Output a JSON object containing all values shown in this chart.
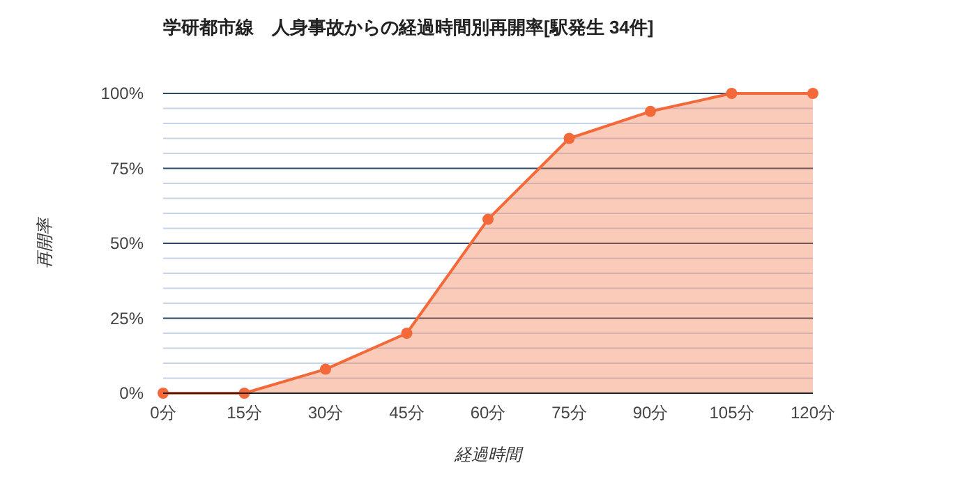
{
  "chart_data": {
    "type": "area",
    "title": "学研都市線　人身事故からの経過時間別再開率[駅発生 34件]",
    "categories": [
      "0分",
      "15分",
      "30分",
      "45分",
      "60分",
      "75分",
      "90分",
      "105分",
      "120分"
    ],
    "series": [
      {
        "color": "#f4693a",
        "values": [
          0,
          0,
          8,
          20,
          58,
          85,
          94,
          100,
          100
        ]
      }
    ],
    "xlabel": "経過時間",
    "ylabel": "再開率",
    "ylim": [
      0,
      100
    ],
    "yticks": [
      {
        "value": 0,
        "label": "0%"
      },
      {
        "value": 5,
        "label": null
      },
      {
        "value": 10,
        "label": null
      },
      {
        "value": 15,
        "label": null
      },
      {
        "value": 20,
        "label": null
      },
      {
        "value": 25,
        "label": "25%"
      },
      {
        "value": 30,
        "label": null
      },
      {
        "value": 35,
        "label": null
      },
      {
        "value": 40,
        "label": null
      },
      {
        "value": 45,
        "label": null
      },
      {
        "value": 50,
        "label": "50%"
      },
      {
        "value": 55,
        "label": null
      },
      {
        "value": 60,
        "label": null
      },
      {
        "value": 65,
        "label": null
      },
      {
        "value": 70,
        "label": null
      },
      {
        "value": 75,
        "label": "75%"
      },
      {
        "value": 80,
        "label": null
      },
      {
        "value": 85,
        "label": null
      },
      {
        "value": 90,
        "label": null
      },
      {
        "value": 95,
        "label": null
      },
      {
        "value": 100,
        "label": "100%"
      }
    ],
    "grid": "y",
    "marker": "circle"
  }
}
